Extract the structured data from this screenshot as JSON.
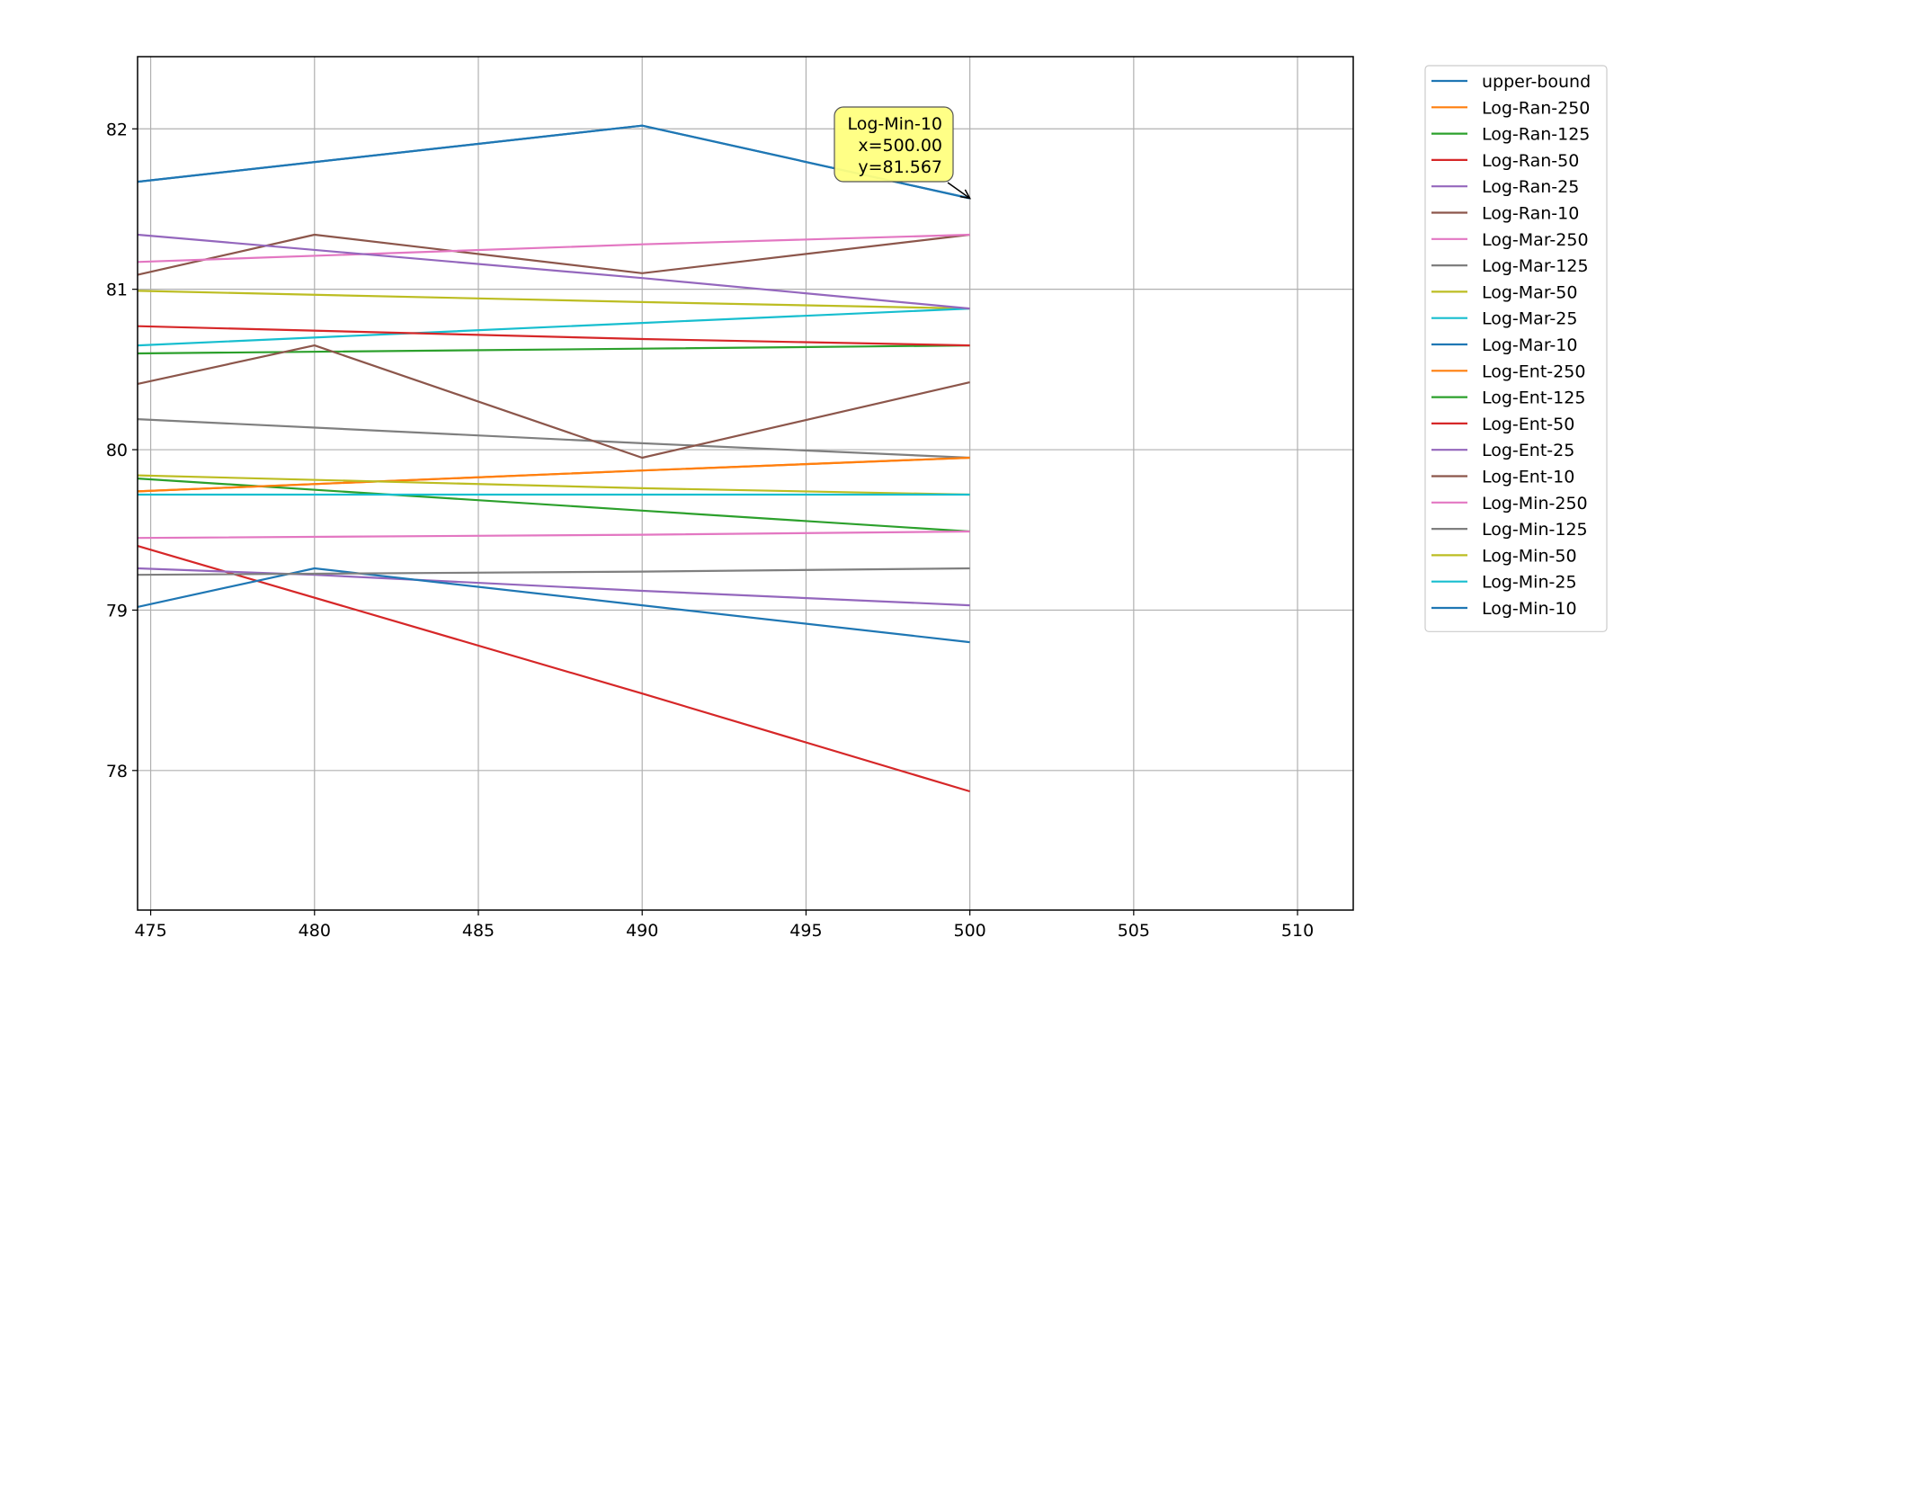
{
  "chart_data": {
    "type": "line",
    "title": "",
    "xlabel": "",
    "ylabel": "",
    "xlim": [
      474.6,
      511.7
    ],
    "ylim": [
      77.13,
      82.45
    ],
    "xticks": [
      475,
      480,
      485,
      490,
      495,
      500,
      505,
      510
    ],
    "yticks": [
      78,
      79,
      80,
      81,
      82
    ],
    "grid": true,
    "legend_position": "outside-right-top",
    "series": [
      {
        "name": "upper-bound",
        "color": "#1f77b4",
        "x": [
          474.6,
          490,
          500
        ],
        "y": [
          81.67,
          82.02,
          81.567
        ]
      },
      {
        "name": "Log-Ran-250",
        "color": "#ff7f0e",
        "x": [
          474.6,
          490,
          500
        ],
        "y": [
          79.74,
          79.87,
          79.95
        ]
      },
      {
        "name": "Log-Ran-125",
        "color": "#2ca02c",
        "x": [
          474.6,
          490,
          500
        ],
        "y": [
          79.82,
          79.62,
          79.49
        ]
      },
      {
        "name": "Log-Ran-50",
        "color": "#d62728",
        "x": [
          474.6,
          490,
          500
        ],
        "y": [
          79.4,
          78.48,
          77.87
        ]
      },
      {
        "name": "Log-Ran-25",
        "color": "#9467bd",
        "x": [
          474.6,
          480,
          490,
          500
        ],
        "y": [
          79.26,
          79.22,
          79.12,
          79.03
        ]
      },
      {
        "name": "Log-Ran-10",
        "color": "#8c564b",
        "x": [
          474.6,
          480,
          490,
          500
        ],
        "y": [
          81.09,
          81.34,
          81.1,
          81.34
        ]
      },
      {
        "name": "Log-Mar-250",
        "color": "#e377c2",
        "x": [
          474.6,
          490,
          500
        ],
        "y": [
          81.17,
          81.28,
          81.34
        ]
      },
      {
        "name": "Log-Mar-125",
        "color": "#7f7f7f",
        "x": [
          474.6,
          490,
          500
        ],
        "y": [
          80.19,
          80.04,
          79.95
        ]
      },
      {
        "name": "Log-Mar-50",
        "color": "#bcbd22",
        "x": [
          474.6,
          490,
          500
        ],
        "y": [
          80.99,
          80.92,
          80.88
        ]
      },
      {
        "name": "Log-Mar-25",
        "color": "#17becf",
        "x": [
          474.6,
          490,
          500
        ],
        "y": [
          80.65,
          80.79,
          80.88
        ]
      },
      {
        "name": "Log-Mar-10",
        "color": "#1f77b4",
        "x": [
          474.6,
          480,
          490,
          500
        ],
        "y": [
          79.02,
          79.26,
          79.03,
          78.8
        ]
      },
      {
        "name": "Log-Ent-250",
        "color": "#ff7f0e",
        "x": [
          474.6,
          490,
          500
        ],
        "y": [
          79.74,
          79.87,
          79.95
        ]
      },
      {
        "name": "Log-Ent-125",
        "color": "#2ca02c",
        "x": [
          474.6,
          490,
          500
        ],
        "y": [
          80.6,
          80.63,
          80.65
        ]
      },
      {
        "name": "Log-Ent-50",
        "color": "#d62728",
        "x": [
          474.6,
          490,
          500
        ],
        "y": [
          80.77,
          80.69,
          80.65
        ]
      },
      {
        "name": "Log-Ent-25",
        "color": "#9467bd",
        "x": [
          474.6,
          490,
          500
        ],
        "y": [
          81.34,
          81.07,
          80.88
        ]
      },
      {
        "name": "Log-Ent-10",
        "color": "#8c564b",
        "x": [
          474.6,
          480,
          490,
          500
        ],
        "y": [
          80.41,
          80.65,
          79.95,
          80.42
        ]
      },
      {
        "name": "Log-Min-250",
        "color": "#e377c2",
        "x": [
          474.6,
          490,
          500
        ],
        "y": [
          79.45,
          79.47,
          79.49
        ]
      },
      {
        "name": "Log-Min-125",
        "color": "#7f7f7f",
        "x": [
          474.6,
          490,
          500
        ],
        "y": [
          79.22,
          79.24,
          79.26
        ]
      },
      {
        "name": "Log-Min-50",
        "color": "#bcbd22",
        "x": [
          474.6,
          490,
          500
        ],
        "y": [
          79.84,
          79.76,
          79.72
        ]
      },
      {
        "name": "Log-Min-25",
        "color": "#17becf",
        "x": [
          474.6,
          490,
          500
        ],
        "y": [
          79.72,
          79.72,
          79.72
        ]
      },
      {
        "name": "Log-Min-10",
        "color": "#1f77b4",
        "x": [
          474.6,
          490,
          500
        ],
        "y": [
          81.67,
          82.02,
          81.567
        ]
      }
    ],
    "annotation": {
      "series": "Log-Min-10",
      "lines": [
        "Log-Min-10",
        "x=500.00",
        "y=81.567"
      ],
      "x": 500,
      "y": 81.567,
      "box_color": "#ffff80"
    }
  }
}
